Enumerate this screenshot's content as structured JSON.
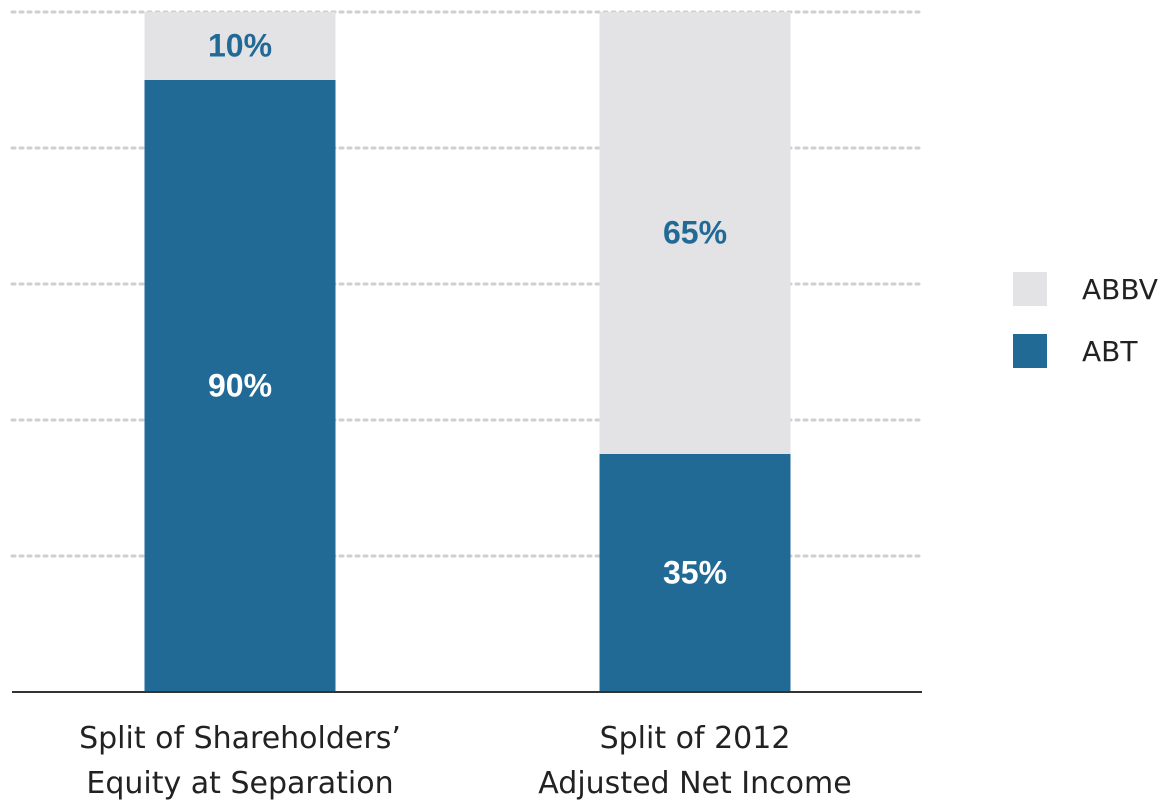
{
  "chart_data": {
    "type": "bar",
    "stacked": true,
    "categories": [
      [
        "Split of Shareholders’",
        "Equity at Separation"
      ],
      [
        "Split of 2012",
        "Adjusted Net Income"
      ]
    ],
    "series": [
      {
        "name": "ABT",
        "values": [
          90,
          35
        ],
        "labels": [
          "90%",
          "35%"
        ]
      },
      {
        "name": "ABBV",
        "values": [
          10,
          65
        ],
        "labels": [
          "10%",
          "65%"
        ]
      }
    ],
    "ylim": [
      0,
      100
    ],
    "grid": true,
    "legend": {
      "position": "right",
      "order": [
        "ABBV",
        "ABT"
      ]
    },
    "title": "",
    "xlabel": "",
    "ylabel": ""
  },
  "colors": {
    "ABT": "#226a96",
    "ABBV": "#e3e3e5",
    "label_on_ABT": "#ffffff",
    "label_on_ABBV": "#226a96"
  }
}
